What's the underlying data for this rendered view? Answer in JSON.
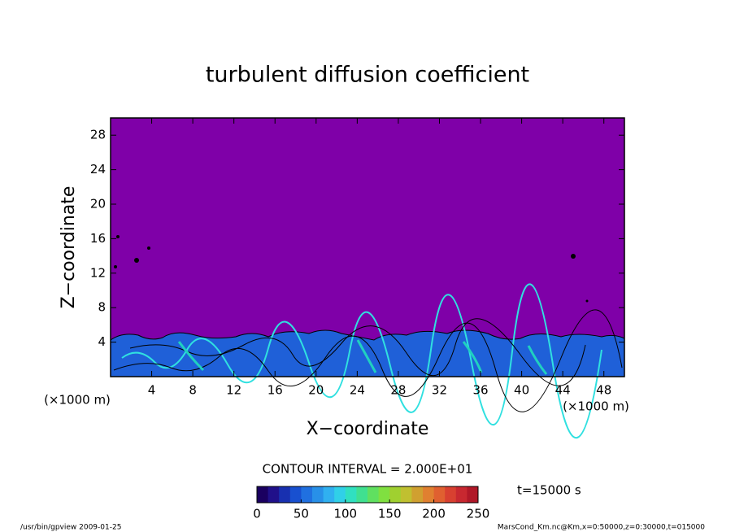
{
  "chart_data": {
    "type": "contour",
    "title": "turbulent diffusion coefficient",
    "xlabel": "X−coordinate",
    "ylabel": "Z−coordinate",
    "x_unit_label": "(×1000 m)",
    "y_unit_label": "(×1000 m)",
    "xlim": [
      0,
      50
    ],
    "ylim": [
      0,
      30
    ],
    "xticks": [
      4,
      8,
      12,
      16,
      20,
      24,
      28,
      32,
      36,
      40,
      44,
      48
    ],
    "yticks": [
      4,
      8,
      12,
      16,
      20,
      24,
      28
    ],
    "background_color": "#7f00a8",
    "contour_interval_label": "CONTOUR INTERVAL = 2.000E+01",
    "time_label": "t=15000 s",
    "colorbar": {
      "lim": [
        0,
        250
      ],
      "ticks": [
        0,
        50,
        100,
        150,
        200,
        250
      ],
      "colors": [
        "#1a0060",
        "#20108a",
        "#1830b0",
        "#1850d0",
        "#2070e0",
        "#2890e8",
        "#30b0f0",
        "#30d0e8",
        "#30e0c0",
        "#40e090",
        "#60e060",
        "#80e040",
        "#a0d030",
        "#c0c030",
        "#d0a030",
        "#e08030",
        "#e06030",
        "#d84030",
        "#c82830",
        "#b01828"
      ]
    },
    "footer_left": "/usr/bin/gpview  2009-01-25",
    "footer_right": "MarsCond_Km.nc@Km,x=0:50000,z=0:30000,t=015000"
  }
}
